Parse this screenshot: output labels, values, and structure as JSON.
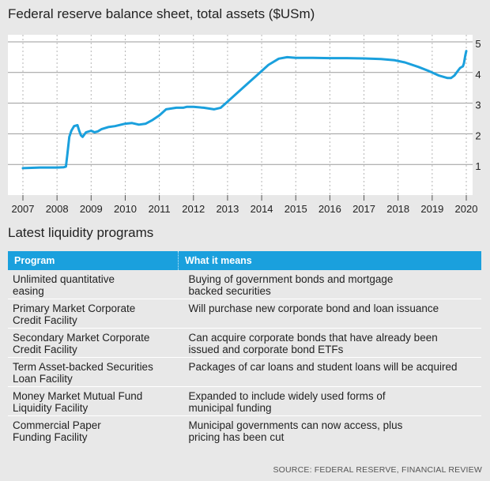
{
  "title": "Federal reserve balance sheet, total assets ($USm)",
  "subtitle": "Latest liquidity programs",
  "source": "SOURCE: FEDERAL RESERVE, FINANCIAL REVIEW",
  "colors": {
    "line": "#1aa0dd",
    "header_bg": "#1aa0dd",
    "plot_bg": "#ffffff",
    "page_bg": "#e8e8e8",
    "grid": "#aaaaaa"
  },
  "table": {
    "headers": [
      "Program",
      "What it means"
    ],
    "rows": [
      {
        "program": "Unlimited quantitative\neasing",
        "meaning": "Buying of government bonds and mortgage\nbacked securities"
      },
      {
        "program": "Primary Market Corporate\nCredit Facility",
        "meaning": "Will purchase new corporate bond and loan issuance"
      },
      {
        "program": "Secondary Market Corporate\nCredit Facility",
        "meaning": "Can acquire corporate bonds that have already been\nissued and corporate bond ETFs"
      },
      {
        "program": "Term Asset-backed Securities\nLoan Facility",
        "meaning": "Packages of car loans and student loans will be acquired"
      },
      {
        "program": "Money Market Mutual Fund\nLiquidity Facility",
        "meaning": "Expanded to include widely used forms of\nmunicipal funding"
      },
      {
        "program": "Commercial Paper\nFunding Facility",
        "meaning": "Municipal governments can now access, plus\npricing has been cut"
      }
    ]
  },
  "chart_data": {
    "type": "line",
    "title": "Federal reserve balance sheet, total assets ($USm)",
    "xlabel": "",
    "ylabel": "",
    "xlim": [
      2007,
      2020
    ],
    "ylim": [
      0,
      5
    ],
    "x_ticks": [
      2007,
      2008,
      2009,
      2010,
      2011,
      2012,
      2013,
      2014,
      2015,
      2016,
      2017,
      2018,
      2019,
      2020
    ],
    "y_ticks": [
      1,
      2,
      3,
      4,
      5
    ],
    "y_axis_side": "right",
    "grid": "horizontal",
    "series": [
      {
        "name": "",
        "points": [
          [
            2007.0,
            0.88
          ],
          [
            2007.5,
            0.9
          ],
          [
            2008.0,
            0.9
          ],
          [
            2008.2,
            0.91
          ],
          [
            2008.26,
            0.93
          ],
          [
            2008.3,
            1.3
          ],
          [
            2008.36,
            1.9
          ],
          [
            2008.42,
            2.1
          ],
          [
            2008.5,
            2.25
          ],
          [
            2008.6,
            2.28
          ],
          [
            2008.65,
            2.1
          ],
          [
            2008.7,
            1.95
          ],
          [
            2008.75,
            1.9
          ],
          [
            2008.85,
            2.05
          ],
          [
            2009.0,
            2.1
          ],
          [
            2009.1,
            2.05
          ],
          [
            2009.2,
            2.08
          ],
          [
            2009.3,
            2.15
          ],
          [
            2009.5,
            2.22
          ],
          [
            2009.7,
            2.25
          ],
          [
            2010.0,
            2.33
          ],
          [
            2010.2,
            2.35
          ],
          [
            2010.4,
            2.3
          ],
          [
            2010.6,
            2.33
          ],
          [
            2010.8,
            2.45
          ],
          [
            2011.0,
            2.6
          ],
          [
            2011.2,
            2.8
          ],
          [
            2011.5,
            2.85
          ],
          [
            2011.7,
            2.85
          ],
          [
            2011.8,
            2.88
          ],
          [
            2012.0,
            2.88
          ],
          [
            2012.3,
            2.85
          ],
          [
            2012.6,
            2.8
          ],
          [
            2012.8,
            2.85
          ],
          [
            2013.0,
            3.05
          ],
          [
            2013.3,
            3.35
          ],
          [
            2013.6,
            3.65
          ],
          [
            2013.9,
            3.95
          ],
          [
            2014.2,
            4.25
          ],
          [
            2014.5,
            4.45
          ],
          [
            2014.75,
            4.5
          ],
          [
            2015.0,
            4.48
          ],
          [
            2015.5,
            4.48
          ],
          [
            2016.0,
            4.47
          ],
          [
            2016.5,
            4.47
          ],
          [
            2017.0,
            4.46
          ],
          [
            2017.5,
            4.44
          ],
          [
            2017.9,
            4.4
          ],
          [
            2018.2,
            4.33
          ],
          [
            2018.6,
            4.18
          ],
          [
            2018.9,
            4.05
          ],
          [
            2019.2,
            3.9
          ],
          [
            2019.45,
            3.82
          ],
          [
            2019.55,
            3.82
          ],
          [
            2019.65,
            3.9
          ],
          [
            2019.75,
            4.05
          ],
          [
            2019.82,
            4.15
          ],
          [
            2019.9,
            4.2
          ],
          [
            2019.93,
            4.3
          ],
          [
            2019.97,
            4.55
          ],
          [
            2020.0,
            4.7
          ]
        ]
      }
    ]
  }
}
